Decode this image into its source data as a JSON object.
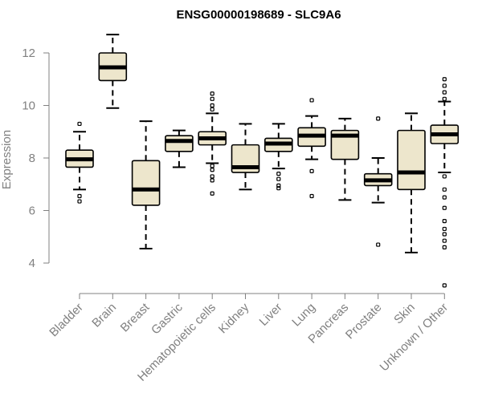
{
  "chart_data": {
    "type": "boxplot",
    "title": "ENSG00000198689 - SLC9A6",
    "xlabel": "",
    "ylabel": "Expression",
    "ylim": [
      3.0,
      13.0
    ],
    "yticks": [
      4,
      6,
      8,
      10,
      12
    ],
    "box_fill": "#EDE6CC",
    "categories": [
      "Bladder",
      "Brain",
      "Breast",
      "Gastric",
      "Hematopoietic cells",
      "Kidney",
      "Liver",
      "Lung",
      "Pancreas",
      "Prostate",
      "Skin",
      "Unknown / Other"
    ],
    "boxes": [
      {
        "name": "Bladder",
        "q1": 7.65,
        "median": 7.95,
        "q3": 8.3,
        "whisker_low": 6.8,
        "whisker_high": 9.0,
        "outliers": [
          9.3,
          6.55,
          6.35
        ]
      },
      {
        "name": "Brain",
        "q1": 10.95,
        "median": 11.45,
        "q3": 12.0,
        "whisker_low": 9.9,
        "whisker_high": 12.7,
        "outliers": []
      },
      {
        "name": "Breast",
        "q1": 6.2,
        "median": 6.8,
        "q3": 7.9,
        "whisker_low": 4.55,
        "whisker_high": 9.4,
        "outliers": []
      },
      {
        "name": "Gastric",
        "q1": 8.25,
        "median": 8.65,
        "q3": 8.85,
        "whisker_low": 7.65,
        "whisker_high": 9.05,
        "outliers": []
      },
      {
        "name": "Hematopoietic cells",
        "q1": 8.5,
        "median": 8.75,
        "q3": 9.0,
        "whisker_low": 7.8,
        "whisker_high": 9.7,
        "outliers": [
          10.45,
          10.25,
          10.0,
          9.85,
          7.7,
          7.55,
          7.3,
          7.15,
          6.65
        ]
      },
      {
        "name": "Kidney",
        "q1": 7.45,
        "median": 7.65,
        "q3": 8.5,
        "whisker_low": 6.8,
        "whisker_high": 9.3,
        "outliers": []
      },
      {
        "name": "Liver",
        "q1": 8.25,
        "median": 8.55,
        "q3": 8.75,
        "whisker_low": 7.6,
        "whisker_high": 9.3,
        "outliers": [
          7.4,
          7.2,
          6.95,
          6.85
        ]
      },
      {
        "name": "Lung",
        "q1": 8.45,
        "median": 8.85,
        "q3": 9.15,
        "whisker_low": 7.95,
        "whisker_high": 9.6,
        "outliers": [
          10.2,
          7.5,
          6.55
        ]
      },
      {
        "name": "Pancreas",
        "q1": 7.95,
        "median": 8.85,
        "q3": 9.05,
        "whisker_low": 6.4,
        "whisker_high": 9.5,
        "outliers": []
      },
      {
        "name": "Prostate",
        "q1": 6.95,
        "median": 7.15,
        "q3": 7.4,
        "whisker_low": 6.3,
        "whisker_high": 8.0,
        "outliers": [
          9.5,
          4.7
        ]
      },
      {
        "name": "Skin",
        "q1": 6.8,
        "median": 7.45,
        "q3": 9.05,
        "whisker_low": 4.4,
        "whisker_high": 9.7,
        "outliers": []
      },
      {
        "name": "Unknown / Other",
        "q1": 8.55,
        "median": 8.9,
        "q3": 9.25,
        "whisker_low": 7.45,
        "whisker_high": 10.15,
        "outliers": [
          11.0,
          10.75,
          10.5,
          10.25,
          7.3,
          6.8,
          6.5,
          6.1,
          5.6,
          5.3,
          5.1,
          4.85,
          4.6,
          3.15
        ]
      }
    ]
  }
}
